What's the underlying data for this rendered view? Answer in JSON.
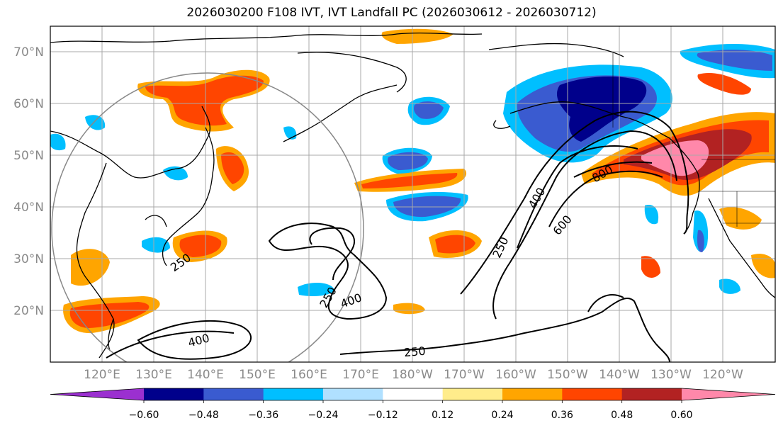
{
  "title": "2026030200 F108 IVT, IVT Landfall PC (2026030612 - 2026030712)",
  "map": {
    "lat_labels": [
      "70°N",
      "60°N",
      "50°N",
      "40°N",
      "30°N",
      "20°N"
    ],
    "lon_labels": [
      "120°E",
      "130°E",
      "140°E",
      "150°E",
      "160°E",
      "170°E",
      "180°W",
      "170°W",
      "160°W",
      "150°W",
      "140°W",
      "130°W",
      "120°W"
    ],
    "ivt_contour_labels": [
      "250",
      "250",
      "250",
      "250",
      "400",
      "400",
      "400",
      "600",
      "800"
    ]
  },
  "colorbar": {
    "colors": [
      "#9b30d0",
      "#00008b",
      "#3a5bd0",
      "#00bfff",
      "#b0e0ff",
      "#ffffff",
      "#ffec8b",
      "#ffa500",
      "#ff4500",
      "#b22222",
      "#ff88aa"
    ],
    "tick_labels": [
      "−0.60",
      "−0.48",
      "−0.36",
      "−0.24",
      "−0.12",
      "0.12",
      "0.24",
      "0.36",
      "0.48",
      "0.60"
    ]
  }
}
